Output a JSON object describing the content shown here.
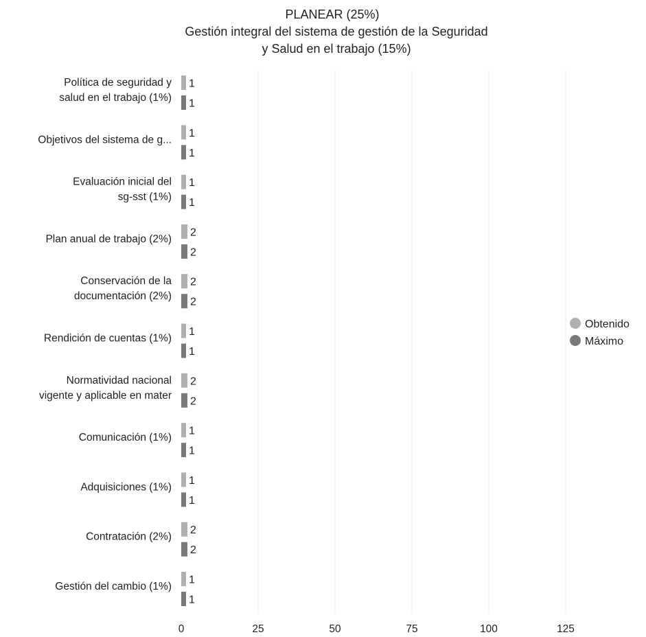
{
  "chart_data": {
    "type": "bar",
    "orientation": "horizontal",
    "title": "PLANEAR (25%)",
    "subtitle_lines": [
      "Gestión integral del sistema de gestión de la Seguridad",
      "y Salud en el trabajo (15%)"
    ],
    "categories": [
      [
        "Política de seguridad y",
        "salud en el trabajo (1%)"
      ],
      [
        "Objetivos del sistema de g..."
      ],
      [
        "Evaluación inicial del",
        "sg-sst (1%)"
      ],
      [
        "Plan anual de trabajo (2%)"
      ],
      [
        "Conservación de la",
        "documentación (2%)"
      ],
      [
        "Rendición de cuentas (1%)"
      ],
      [
        "Normatividad nacional",
        "vigente y aplicable en mater"
      ],
      [
        "Comunicación (1%)"
      ],
      [
        "Adquisiciones (1%)"
      ],
      [
        "Contratación (2%)"
      ],
      [
        "Gestión del cambio (1%)"
      ]
    ],
    "series": [
      {
        "name": "Obtenido",
        "color": "#b0b0b0",
        "values": [
          1,
          1,
          1,
          2,
          2,
          1,
          2,
          1,
          1,
          2,
          1
        ]
      },
      {
        "name": "Máximo",
        "color": "#7a7a7a",
        "values": [
          1,
          1,
          1,
          2,
          2,
          1,
          2,
          1,
          1,
          2,
          1
        ]
      }
    ],
    "x_ticks": [
      0,
      25,
      50,
      75,
      100,
      125
    ],
    "xlim": [
      0,
      125
    ],
    "grid": true,
    "legend_position": "right"
  }
}
